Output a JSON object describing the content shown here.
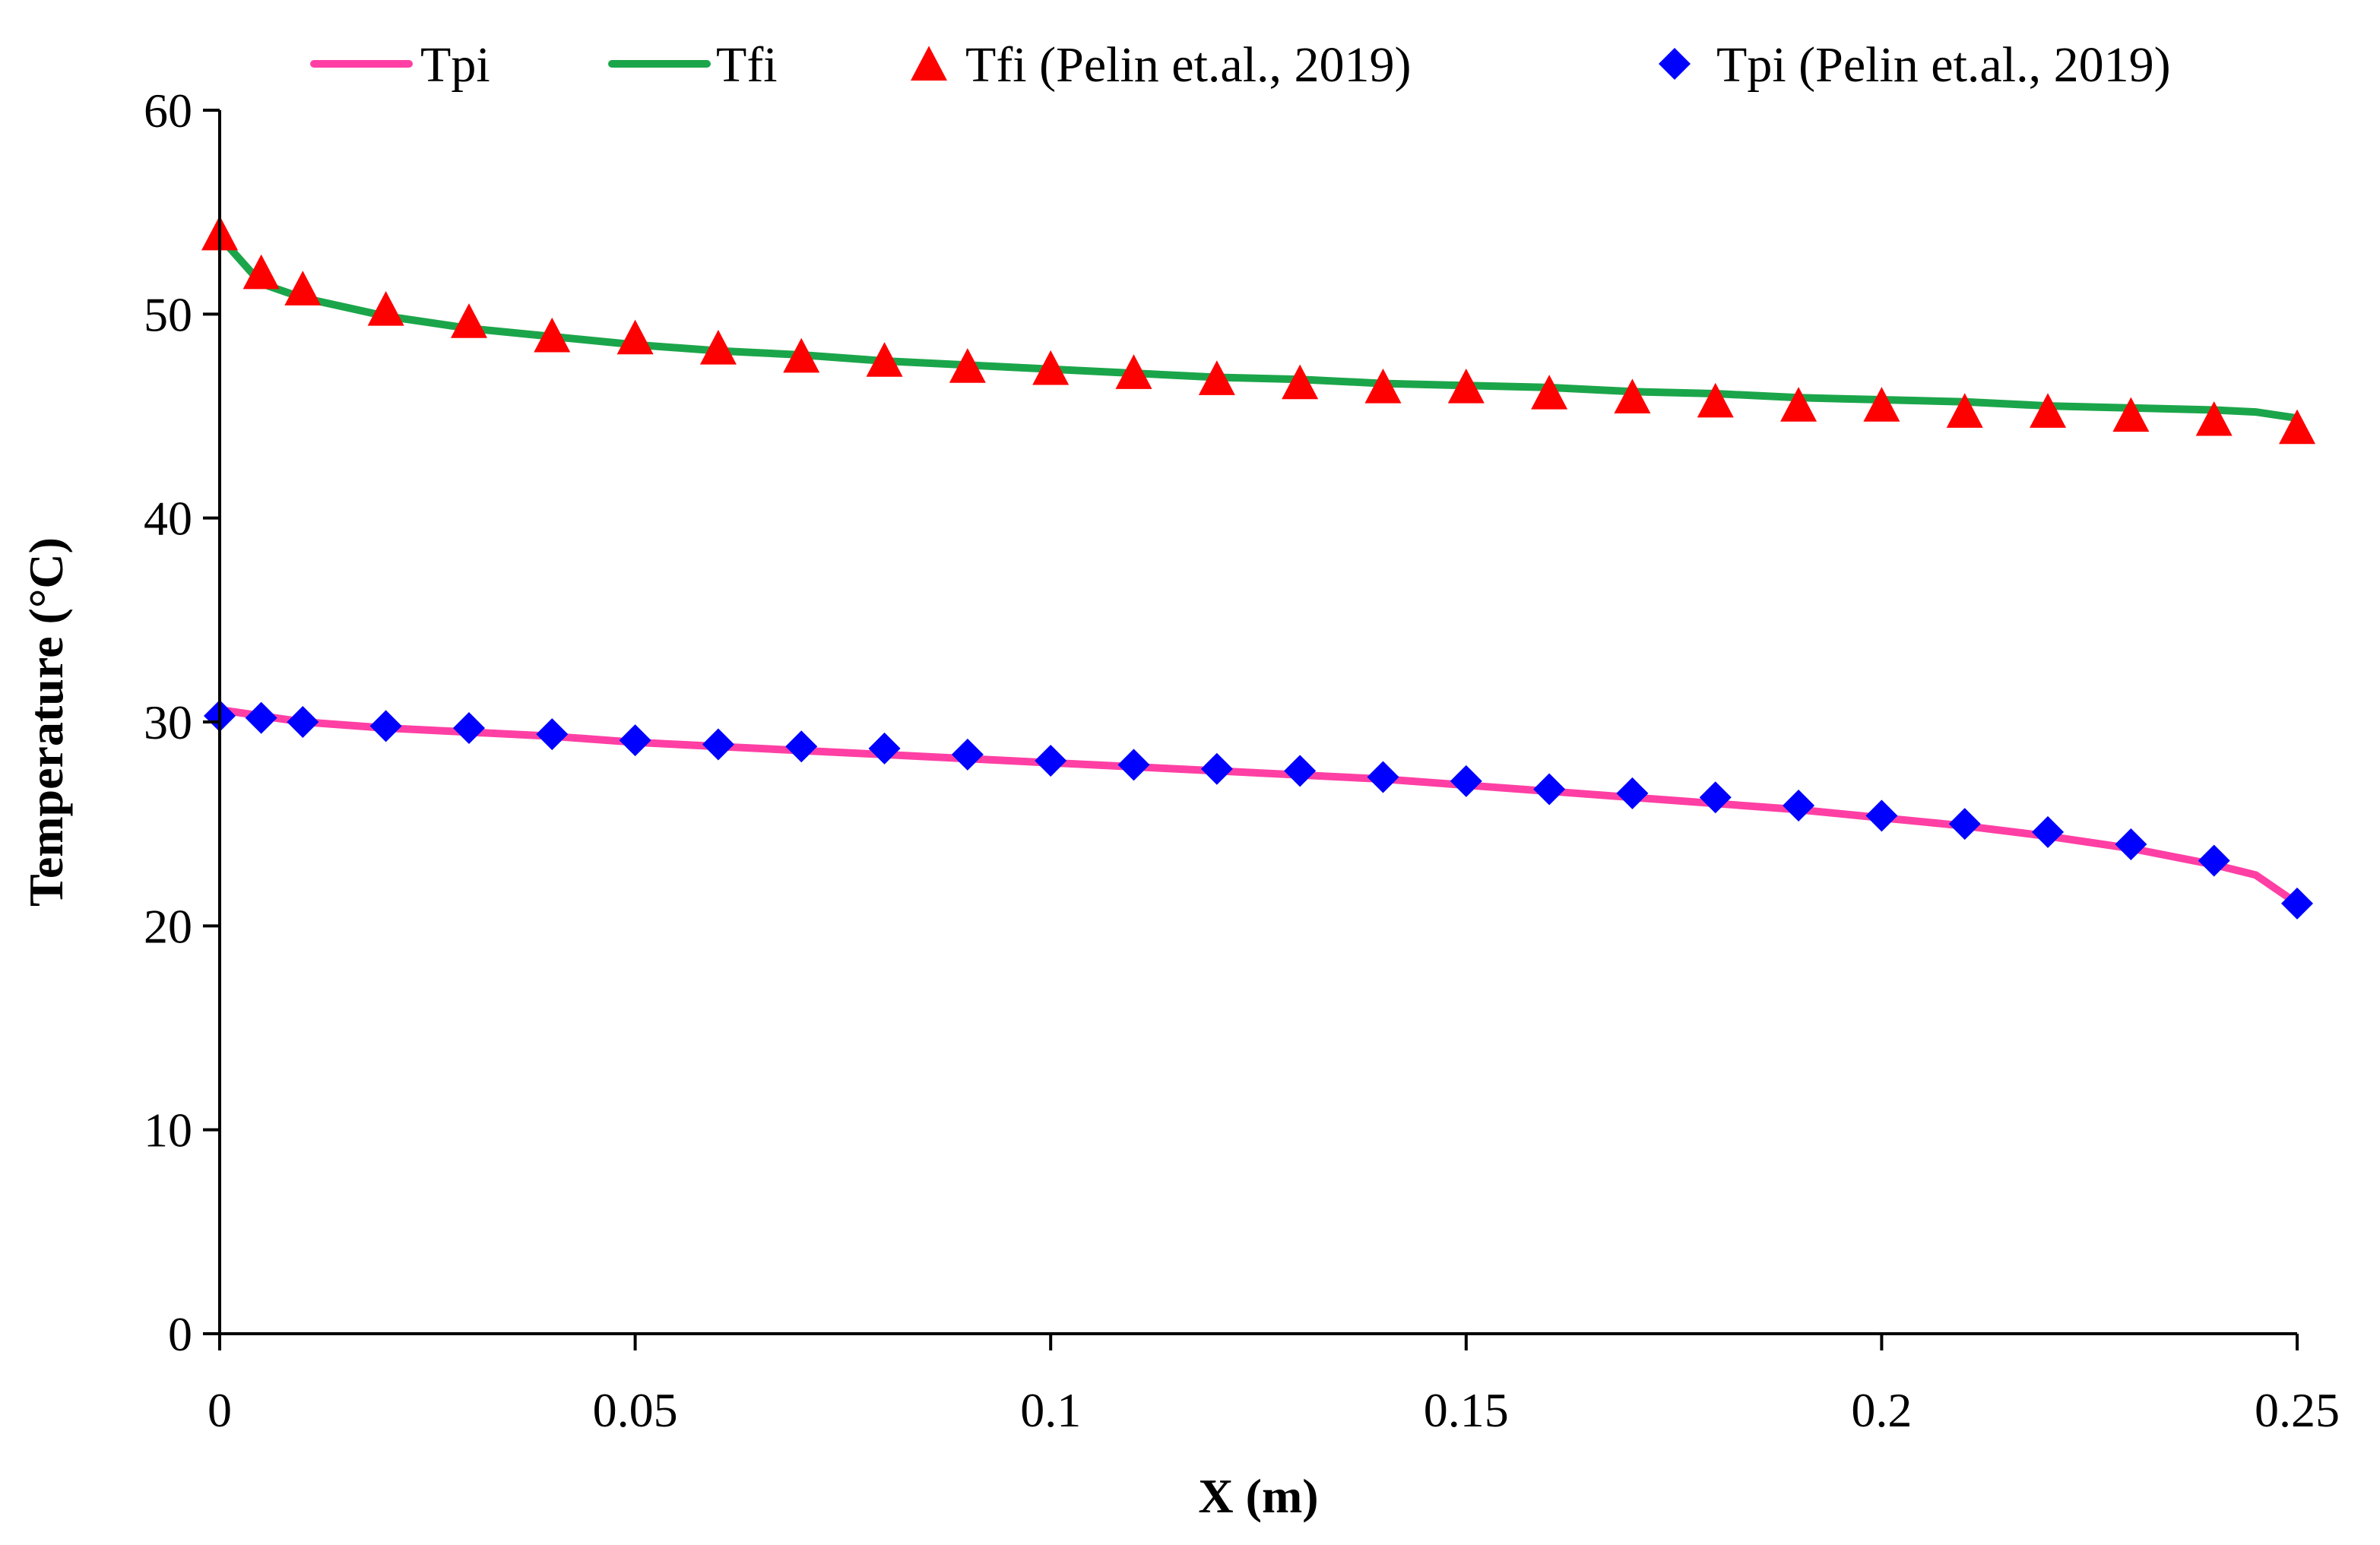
{
  "chart_data": {
    "type": "line",
    "title": "",
    "xlabel": "X (m)",
    "ylabel": "Temperature (°C)",
    "xlim": [
      0,
      0.25
    ],
    "ylim": [
      0,
      60
    ],
    "x_ticks": [
      0,
      0.05,
      0.1,
      0.15,
      0.2,
      0.25
    ],
    "x_tick_labels": [
      "0",
      "0.05",
      "0.1",
      "0.15",
      "0.2",
      "0.25"
    ],
    "y_ticks": [
      0,
      10,
      20,
      30,
      40,
      50,
      60
    ],
    "y_tick_labels": [
      "0",
      "10",
      "20",
      "30",
      "40",
      "50",
      "60"
    ],
    "grid": false,
    "legend_position": "top",
    "series": [
      {
        "name": "Tpi",
        "kind": "line",
        "color": "#ff3fa4",
        "x": [
          0,
          0.005,
          0.01,
          0.02,
          0.03,
          0.04,
          0.05,
          0.06,
          0.07,
          0.08,
          0.09,
          0.1,
          0.11,
          0.12,
          0.13,
          0.14,
          0.15,
          0.16,
          0.17,
          0.18,
          0.19,
          0.2,
          0.21,
          0.22,
          0.23,
          0.24,
          0.245,
          0.25
        ],
        "values": [
          30.6,
          30.3,
          30.0,
          29.7,
          29.5,
          29.3,
          29.0,
          28.8,
          28.6,
          28.4,
          28.2,
          28.0,
          27.8,
          27.6,
          27.4,
          27.2,
          26.9,
          26.6,
          26.3,
          26.0,
          25.7,
          25.3,
          24.9,
          24.4,
          23.8,
          23.0,
          22.5,
          21.1
        ]
      },
      {
        "name": "Tfi",
        "kind": "line",
        "color": "#1ba54a",
        "x": [
          0,
          0.005,
          0.01,
          0.02,
          0.03,
          0.04,
          0.05,
          0.06,
          0.07,
          0.08,
          0.09,
          0.1,
          0.11,
          0.12,
          0.13,
          0.14,
          0.15,
          0.16,
          0.17,
          0.18,
          0.19,
          0.2,
          0.21,
          0.22,
          0.23,
          0.24,
          0.245,
          0.25
        ],
        "values": [
          53.8,
          51.5,
          50.8,
          49.9,
          49.3,
          48.9,
          48.5,
          48.2,
          48.0,
          47.7,
          47.5,
          47.3,
          47.1,
          46.9,
          46.8,
          46.6,
          46.5,
          46.4,
          46.2,
          46.1,
          45.9,
          45.8,
          45.7,
          45.5,
          45.4,
          45.3,
          45.2,
          44.9
        ]
      },
      {
        "name": "Tfi (Pelin et.al., 2019)",
        "kind": "marker",
        "marker": "triangle",
        "color": "#ff0000",
        "x": [
          0,
          0.005,
          0.01,
          0.02,
          0.03,
          0.04,
          0.05,
          0.06,
          0.07,
          0.08,
          0.09,
          0.1,
          0.11,
          0.12,
          0.13,
          0.14,
          0.15,
          0.16,
          0.17,
          0.18,
          0.19,
          0.2,
          0.21,
          0.22,
          0.23,
          0.24,
          0.25
        ],
        "values": [
          53.8,
          51.9,
          51.1,
          50.1,
          49.5,
          48.8,
          48.7,
          48.2,
          47.8,
          47.6,
          47.3,
          47.2,
          47.0,
          46.7,
          46.5,
          46.3,
          46.3,
          46.0,
          45.8,
          45.6,
          45.4,
          45.4,
          45.1,
          45.1,
          44.9,
          44.7,
          44.3
        ]
      },
      {
        "name": "Tpi (Pelin et.al., 2019)",
        "kind": "marker",
        "marker": "diamond",
        "color": "#0000ff",
        "x": [
          0,
          0.005,
          0.01,
          0.02,
          0.03,
          0.04,
          0.05,
          0.06,
          0.07,
          0.08,
          0.09,
          0.1,
          0.11,
          0.12,
          0.13,
          0.14,
          0.15,
          0.16,
          0.17,
          0.18,
          0.19,
          0.2,
          0.21,
          0.22,
          0.23,
          0.24,
          0.25
        ],
        "values": [
          30.3,
          30.2,
          30.0,
          29.8,
          29.7,
          29.4,
          29.1,
          28.9,
          28.8,
          28.7,
          28.4,
          28.1,
          27.9,
          27.7,
          27.6,
          27.3,
          27.1,
          26.7,
          26.5,
          26.3,
          25.9,
          25.4,
          25.0,
          24.6,
          24.0,
          23.2,
          21.1
        ]
      }
    ]
  }
}
